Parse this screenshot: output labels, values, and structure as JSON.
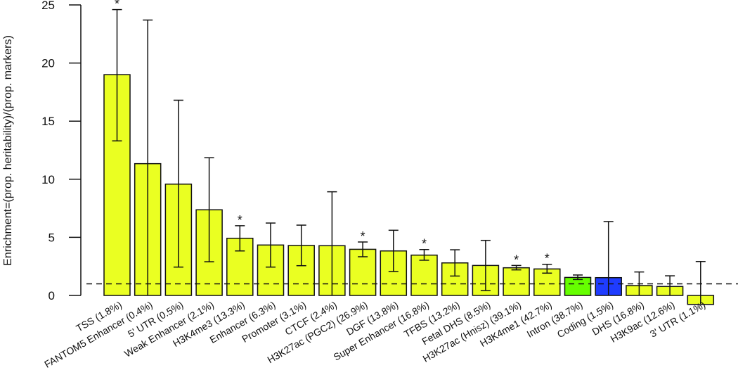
{
  "chart_data": {
    "type": "bar",
    "title": "",
    "xlabel": "",
    "ylabel": "Enrichment=(prop. heritability)/(prop. markers)",
    "ylim": [
      0,
      25
    ],
    "yticks": [
      "0",
      "5",
      "10",
      "15",
      "20",
      "25"
    ],
    "reference_line": 1,
    "significance_marker": "*",
    "colors": {
      "default": "#eaff22",
      "intron": "#66ff00",
      "coding": "#1f3cff"
    },
    "categories": [
      "TSS (1.8%)",
      "FANTOM5 Enhancer (0.4%)",
      "5' UTR (0.5%)",
      "Weak Enhancer (2.1%)",
      "H3K4me3 (13.3%)",
      "Enhancer (6.3%)",
      "Promoter (3.1%)",
      "CTCF (2.4%)",
      "H3K27ac (PGC2) (26.9%)",
      "DGF (13.8%)",
      "Super Enhancer (16.8%)",
      "TFBS (13.2%)",
      "Fetal DHS (8.5%)",
      "H3K27ac (Hnisz) (39.1%)",
      "H3K4me1 (42.7%)",
      "Intron (38.7%)",
      "Coding (1.5%)",
      "DHS (16.8%)",
      "H3K9ac (12.6%)",
      "3' UTR (1.1%)"
    ],
    "values": [
      19.0,
      11.34,
      9.58,
      7.37,
      4.92,
      4.34,
      4.3,
      4.28,
      3.97,
      3.83,
      3.47,
      2.8,
      2.58,
      2.38,
      2.28,
      1.55,
      1.53,
      0.85,
      0.77,
      -0.77
    ],
    "err_upper": [
      24.6,
      23.7,
      16.8,
      11.85,
      6.0,
      6.23,
      6.05,
      8.92,
      4.6,
      5.61,
      3.95,
      3.93,
      4.74,
      2.58,
      2.68,
      1.76,
      6.36,
      2.02,
      1.69,
      2.92
    ],
    "err_lower": [
      13.3,
      0,
      2.44,
      2.9,
      3.83,
      2.44,
      2.56,
      0,
      3.33,
      2.06,
      3.03,
      1.67,
      0.42,
      2.2,
      1.92,
      1.37,
      0,
      0,
      0,
      -0.77
    ],
    "significant": [
      true,
      false,
      false,
      false,
      true,
      false,
      false,
      false,
      true,
      false,
      true,
      false,
      false,
      true,
      true,
      false,
      false,
      false,
      false,
      false
    ],
    "bar_color": [
      "default",
      "default",
      "default",
      "default",
      "default",
      "default",
      "default",
      "default",
      "default",
      "default",
      "default",
      "default",
      "default",
      "default",
      "default",
      "intron",
      "coding",
      "default",
      "default",
      "default"
    ]
  }
}
